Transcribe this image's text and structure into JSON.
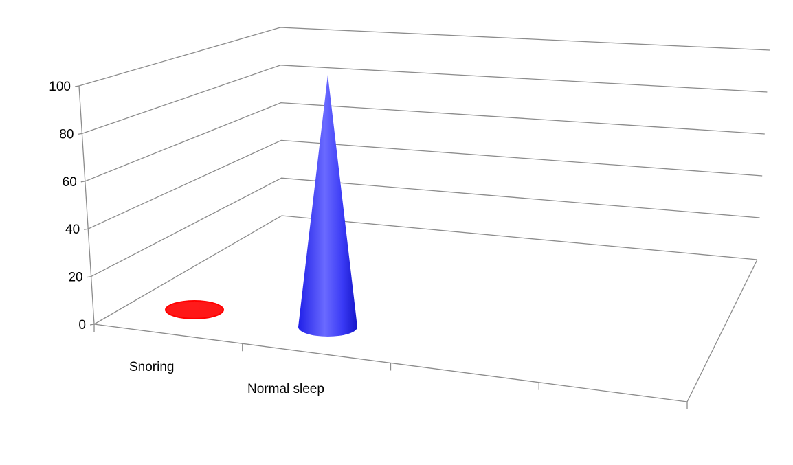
{
  "chart_data": {
    "type": "bar",
    "subtype": "3d-cone",
    "categories": [
      "Snoring",
      "Normal sleep"
    ],
    "values": [
      3,
      100
    ],
    "series_colors": [
      "#ff0000",
      "#2222ee"
    ],
    "ylim": [
      0,
      100
    ],
    "yticks": [
      "0",
      "20",
      "40",
      "60",
      "80",
      "100"
    ],
    "grid": true,
    "legend": "none"
  }
}
